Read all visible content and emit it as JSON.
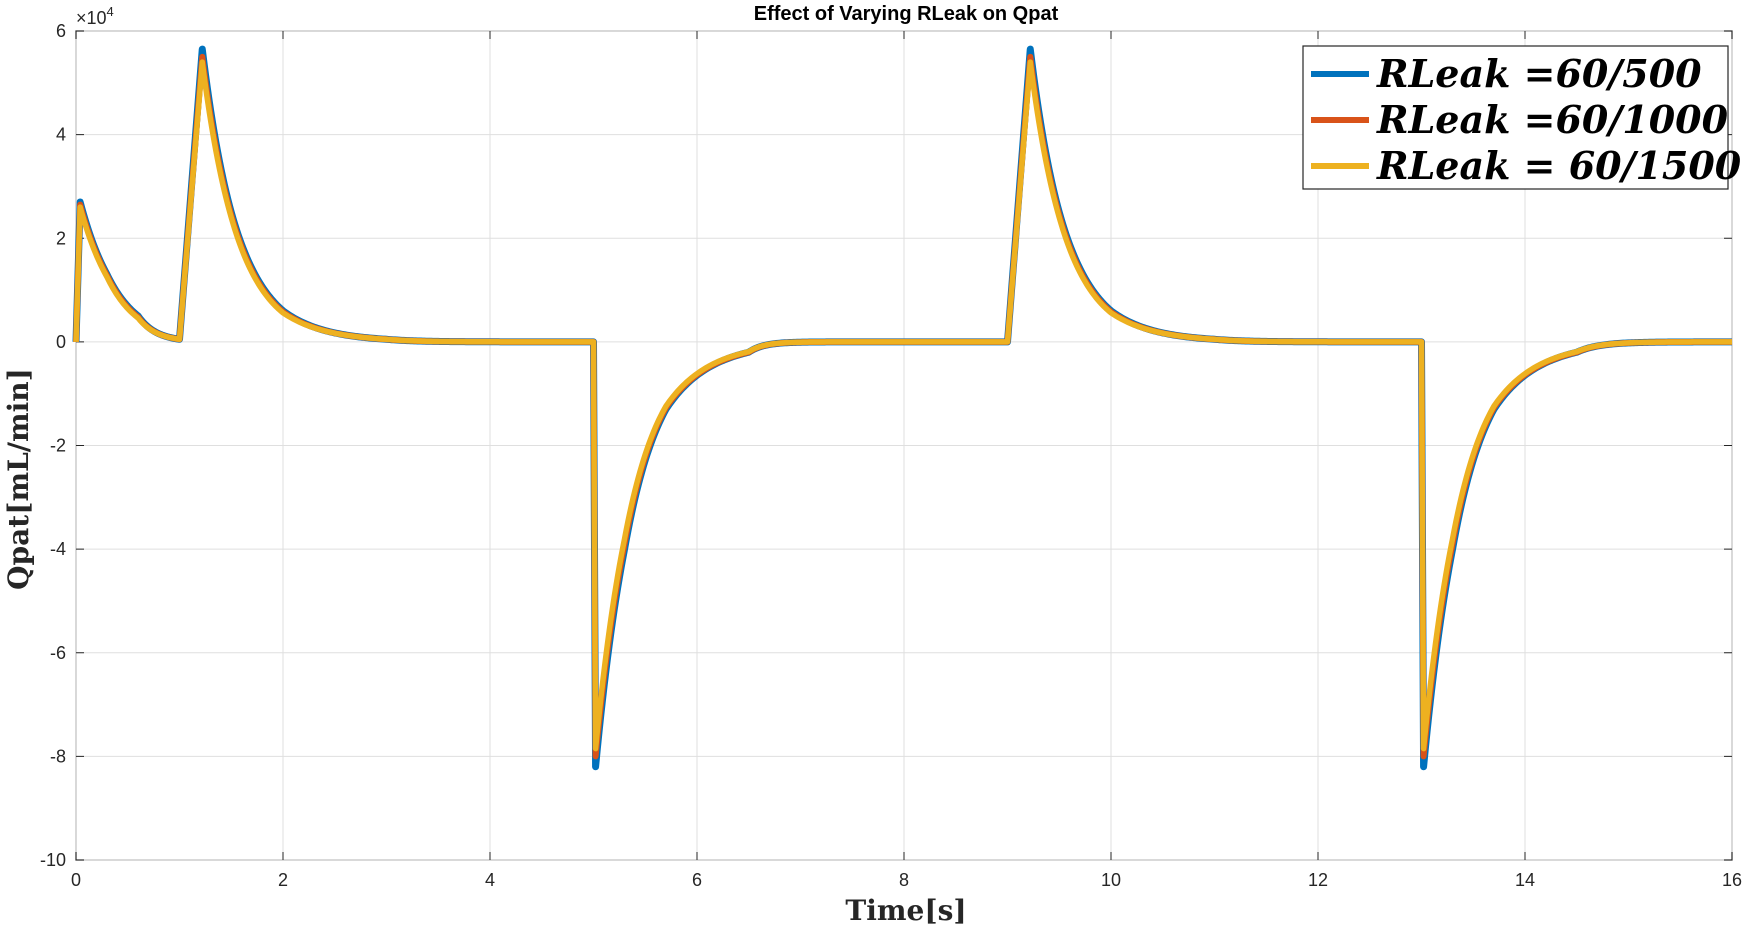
{
  "chart_data": {
    "type": "line",
    "title": "Effect of Varying RLeak on Qpat",
    "xlabel": "Time[s]",
    "ylabel": "Qpat[mL/min]",
    "xlim": [
      0,
      16
    ],
    "ylim": [
      -10,
      6
    ],
    "y_scale_exponent_base": "×10",
    "y_scale_exponent_power": "4",
    "y_multiplier": 10000,
    "xticks": [
      0,
      2,
      4,
      6,
      8,
      10,
      12,
      14,
      16
    ],
    "yticks": [
      -10,
      -8,
      -6,
      -4,
      -2,
      0,
      2,
      4,
      6
    ],
    "grid": true,
    "legend_position": "top-right",
    "model": {
      "period": 8,
      "pulses": [
        {
          "t0": 0.0,
          "t1": 0.0
        },
        {
          "t0": 1.0,
          "t1": 1.22
        },
        {
          "t0": 5.0,
          "t1": 5.02
        }
      ],
      "tau": 0.22
    },
    "series": [
      {
        "name": "RLeak =60/500",
        "color": "#0072BD",
        "points": [
          [
            0,
            0
          ],
          [
            0.04,
            2.7
          ],
          [
            0.3,
            1.3
          ],
          [
            0.6,
            0.5
          ],
          [
            1.0,
            0.05
          ],
          [
            1.22,
            5.65
          ],
          [
            1.5,
            2.5
          ],
          [
            2.0,
            0.6
          ],
          [
            3.0,
            0.05
          ],
          [
            5.0,
            0.0
          ],
          [
            5.02,
            -8.2
          ],
          [
            5.3,
            -4.0
          ],
          [
            5.7,
            -1.3
          ],
          [
            6.5,
            -0.2
          ],
          [
            7.5,
            0.0
          ],
          [
            9.0,
            0.0
          ],
          [
            9.22,
            5.65
          ],
          [
            9.5,
            2.5
          ],
          [
            10.0,
            0.6
          ],
          [
            11.0,
            0.05
          ],
          [
            13.0,
            0.0
          ],
          [
            13.02,
            -8.2
          ],
          [
            13.3,
            -4.0
          ],
          [
            13.7,
            -1.3
          ],
          [
            14.5,
            -0.2
          ],
          [
            16.0,
            0.0
          ]
        ]
      },
      {
        "name": "RLeak =60/1000",
        "color": "#D95319",
        "points": [
          [
            0,
            0
          ],
          [
            0.04,
            2.65
          ],
          [
            0.3,
            1.28
          ],
          [
            0.6,
            0.48
          ],
          [
            1.0,
            0.05
          ],
          [
            1.22,
            5.5
          ],
          [
            1.5,
            2.45
          ],
          [
            2.0,
            0.58
          ],
          [
            3.0,
            0.05
          ],
          [
            5.0,
            0.0
          ],
          [
            5.02,
            -8.0
          ],
          [
            5.3,
            -3.9
          ],
          [
            5.7,
            -1.27
          ],
          [
            6.5,
            -0.2
          ],
          [
            7.5,
            0.0
          ],
          [
            9.0,
            0.0
          ],
          [
            9.22,
            5.5
          ],
          [
            9.5,
            2.45
          ],
          [
            10.0,
            0.58
          ],
          [
            11.0,
            0.05
          ],
          [
            13.0,
            0.0
          ],
          [
            13.02,
            -8.0
          ],
          [
            13.3,
            -3.9
          ],
          [
            13.7,
            -1.27
          ],
          [
            14.5,
            -0.2
          ],
          [
            16.0,
            0.0
          ]
        ]
      },
      {
        "name": "RLeak = 60/1500",
        "color": "#EDB120",
        "points": [
          [
            0,
            0
          ],
          [
            0.04,
            2.6
          ],
          [
            0.3,
            1.25
          ],
          [
            0.6,
            0.46
          ],
          [
            1.0,
            0.05
          ],
          [
            1.22,
            5.4
          ],
          [
            1.5,
            2.4
          ],
          [
            2.0,
            0.56
          ],
          [
            3.0,
            0.05
          ],
          [
            5.0,
            0.0
          ],
          [
            5.02,
            -7.85
          ],
          [
            5.3,
            -3.8
          ],
          [
            5.7,
            -1.24
          ],
          [
            6.5,
            -0.19
          ],
          [
            7.5,
            0.0
          ],
          [
            9.0,
            0.0
          ],
          [
            9.22,
            5.4
          ],
          [
            9.5,
            2.4
          ],
          [
            10.0,
            0.56
          ],
          [
            11.0,
            0.05
          ],
          [
            13.0,
            0.0
          ],
          [
            13.02,
            -7.85
          ],
          [
            13.3,
            -3.8
          ],
          [
            13.7,
            -1.24
          ],
          [
            14.5,
            -0.19
          ],
          [
            16.0,
            0.0
          ]
        ]
      }
    ]
  }
}
